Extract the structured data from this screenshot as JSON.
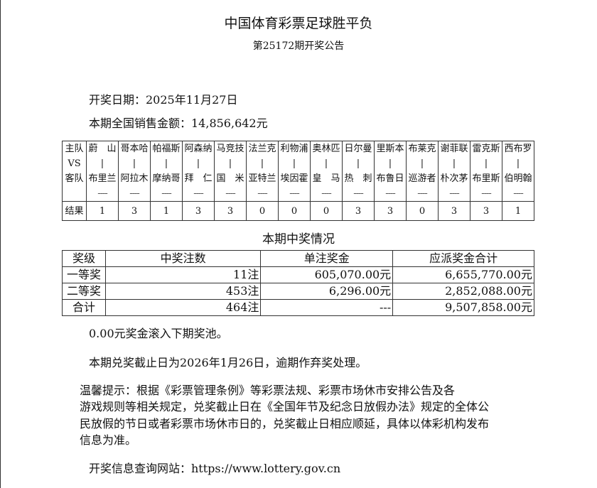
{
  "header": {
    "title": "中国体育彩票足球胜平负",
    "subtitle": "第25172期开奖公告"
  },
  "info": {
    "draw_date": "开奖日期：2025年11月27日",
    "sales": "本期全国销售金额：14,856,642元"
  },
  "matches": {
    "labels": {
      "home": "主队",
      "vs": "VS",
      "away": "客队",
      "result": "结果",
      "vs_mark": "|",
      "dash": "----"
    },
    "rows": [
      {
        "home": "蔚　山",
        "away": "布里兰",
        "result": "1"
      },
      {
        "home": "哥本哈",
        "away": "阿拉木",
        "result": "3"
      },
      {
        "home": "帕福斯",
        "away": "摩纳哥",
        "result": "1"
      },
      {
        "home": "阿森纳",
        "away": "拜　仁",
        "result": "3"
      },
      {
        "home": "马竞技",
        "away": "国　米",
        "result": "3"
      },
      {
        "home": "法兰克",
        "away": "亚特兰",
        "result": "0"
      },
      {
        "home": "利物浦",
        "away": "埃因霍",
        "result": "0"
      },
      {
        "home": "奥林匹",
        "away": "皇　马",
        "result": "0"
      },
      {
        "home": "日尔曼",
        "away": "热　刺",
        "result": "3"
      },
      {
        "home": "里斯本",
        "away": "布鲁日",
        "result": "3"
      },
      {
        "home": "布莱克",
        "away": "巡游者",
        "result": "0"
      },
      {
        "home": "谢菲联",
        "away": "朴次茅",
        "result": "3"
      },
      {
        "home": "雷克斯",
        "away": "布里斯",
        "result": "3"
      },
      {
        "home": "西布罗",
        "away": "伯明翰",
        "result": "1"
      }
    ]
  },
  "prizes": {
    "title": "本期中奖情况",
    "headers": [
      "奖级",
      "中奖注数",
      "单注奖金",
      "应派奖金合计"
    ],
    "rows": [
      [
        "一等奖",
        "11注",
        "605,070.00元",
        "6,655,770.00元"
      ],
      [
        "二等奖",
        "453注",
        "6,296.00元",
        "2,852,088.00元"
      ],
      [
        "合计",
        "464注",
        "---",
        "9,507,858.00元"
      ]
    ]
  },
  "notes": {
    "rollover": "0.00元奖金滚入下期奖池。",
    "deadline": "本期兑奖截止日为2026年1月26日，逾期作弃奖处理。",
    "tip_lines": [
      "温馨提示：根据《彩票管理条例》等彩票法规、彩票市场休市安排公告及各",
      "游戏规则等相关规定，兑奖截止日在《全国年节及纪念日放假办法》规定的全体公",
      "民放假的节日或者彩票市场休市日的，兑奖截止日相应顺延，具体以体彩机构发布",
      "信息为准。"
    ],
    "website": "开奖信息查询网站：https://www.lottery.gov.cn"
  }
}
